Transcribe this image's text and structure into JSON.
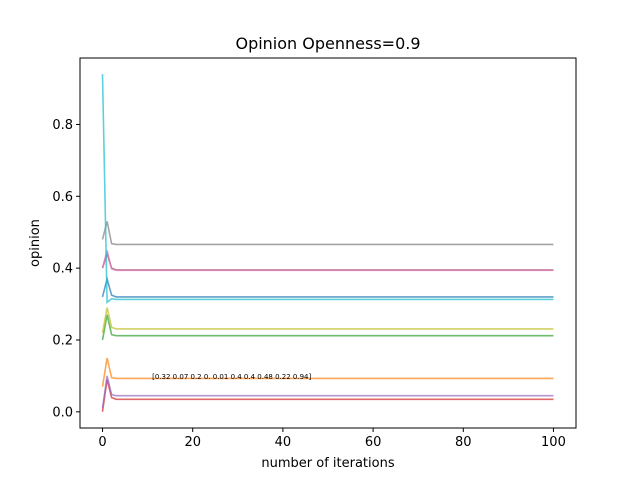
{
  "chart_data": {
    "type": "line",
    "title": "Opinion Openness=0.9",
    "xlabel": "number of iterations",
    "ylabel": "opinion",
    "xlim": [
      -5,
      105
    ],
    "ylim": [
      -0.045,
      0.985
    ],
    "xticks": [
      0,
      20,
      40,
      60,
      80,
      100
    ],
    "xtick_labels": [
      "0",
      "20",
      "40",
      "60",
      "80",
      "100"
    ],
    "yticks": [
      0.0,
      0.2,
      0.4,
      0.6,
      0.8
    ],
    "ytick_labels": [
      "0.0",
      "0.2",
      "0.4",
      "0.6",
      "0.8"
    ],
    "grid": false,
    "legend": "none",
    "annotation": {
      "text": "[0.32 0.07 0.2  0.   0.01 0.4  0.4  0.48 0.22 0.94]",
      "x": 11,
      "y": 0.1
    },
    "series": [
      {
        "color": "#1f77b4",
        "values": [
          0.32,
          0.37,
          0.325,
          0.32,
          0.32
        ]
      },
      {
        "color": "#ff7f0e",
        "values": [
          0.07,
          0.15,
          0.095,
          0.093,
          0.093
        ]
      },
      {
        "color": "#2ca02c",
        "values": [
          0.2,
          0.27,
          0.215,
          0.212,
          0.212
        ]
      },
      {
        "color": "#d62728",
        "values": [
          0.0,
          0.09,
          0.04,
          0.035,
          0.035
        ]
      },
      {
        "color": "#9467bd",
        "values": [
          0.01,
          0.1,
          0.048,
          0.045,
          0.045
        ]
      },
      {
        "color": "#8c564b",
        "values": [
          0.4,
          0.44,
          0.4,
          0.395,
          0.395
        ]
      },
      {
        "color": "#e377c2",
        "values": [
          0.4,
          0.45,
          0.398,
          0.394,
          0.394
        ]
      },
      {
        "color": "#7f7f7f",
        "values": [
          0.48,
          0.53,
          0.468,
          0.466,
          0.466
        ]
      },
      {
        "color": "#bcbd22",
        "values": [
          0.22,
          0.29,
          0.235,
          0.231,
          0.231
        ]
      },
      {
        "color": "#17becf",
        "values": [
          0.94,
          0.305,
          0.315,
          0.313,
          0.313
        ]
      }
    ],
    "x": [
      0,
      1,
      2,
      3,
      100
    ]
  }
}
